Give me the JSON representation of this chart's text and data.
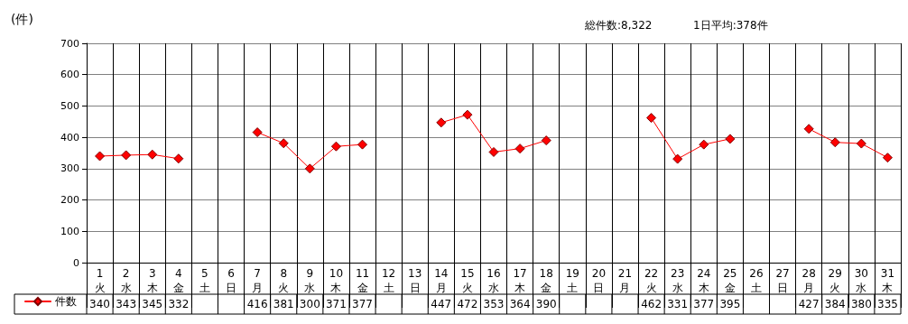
{
  "chart_data": {
    "type": "line",
    "ylabel": "(件)",
    "annotations": [
      "総件数:8,322",
      "1日平均:378件"
    ],
    "categories": [
      "1\n火",
      "2\n水",
      "3\n木",
      "4\n金",
      "5\n土",
      "6\n日",
      "7\n月",
      "8\n火",
      "9\n水",
      "10\n木",
      "11\n金",
      "12\n土",
      "13\n日",
      "14\n月",
      "15\n火",
      "16\n水",
      "17\n木",
      "18\n金",
      "19\n土",
      "20\n日",
      "21\n月",
      "22\n火",
      "23\n水",
      "24\n木",
      "25\n金",
      "26\n土",
      "27\n日",
      "28\n月",
      "29\n火",
      "30\n水",
      "31\n木"
    ],
    "series": [
      {
        "name": "件数",
        "color": "#ff0000",
        "values": [
          340,
          343,
          345,
          332,
          null,
          null,
          416,
          381,
          300,
          371,
          377,
          null,
          null,
          447,
          472,
          353,
          364,
          390,
          null,
          null,
          null,
          462,
          331,
          377,
          395,
          null,
          null,
          427,
          384,
          380,
          335
        ]
      }
    ],
    "ylim": [
      0,
      700
    ],
    "yticks": [
      0,
      100,
      200,
      300,
      400,
      500,
      600,
      700
    ],
    "grid": true,
    "legend": "bottom left",
    "marker": "diamond",
    "line_style": "solid",
    "data_labels": true
  }
}
